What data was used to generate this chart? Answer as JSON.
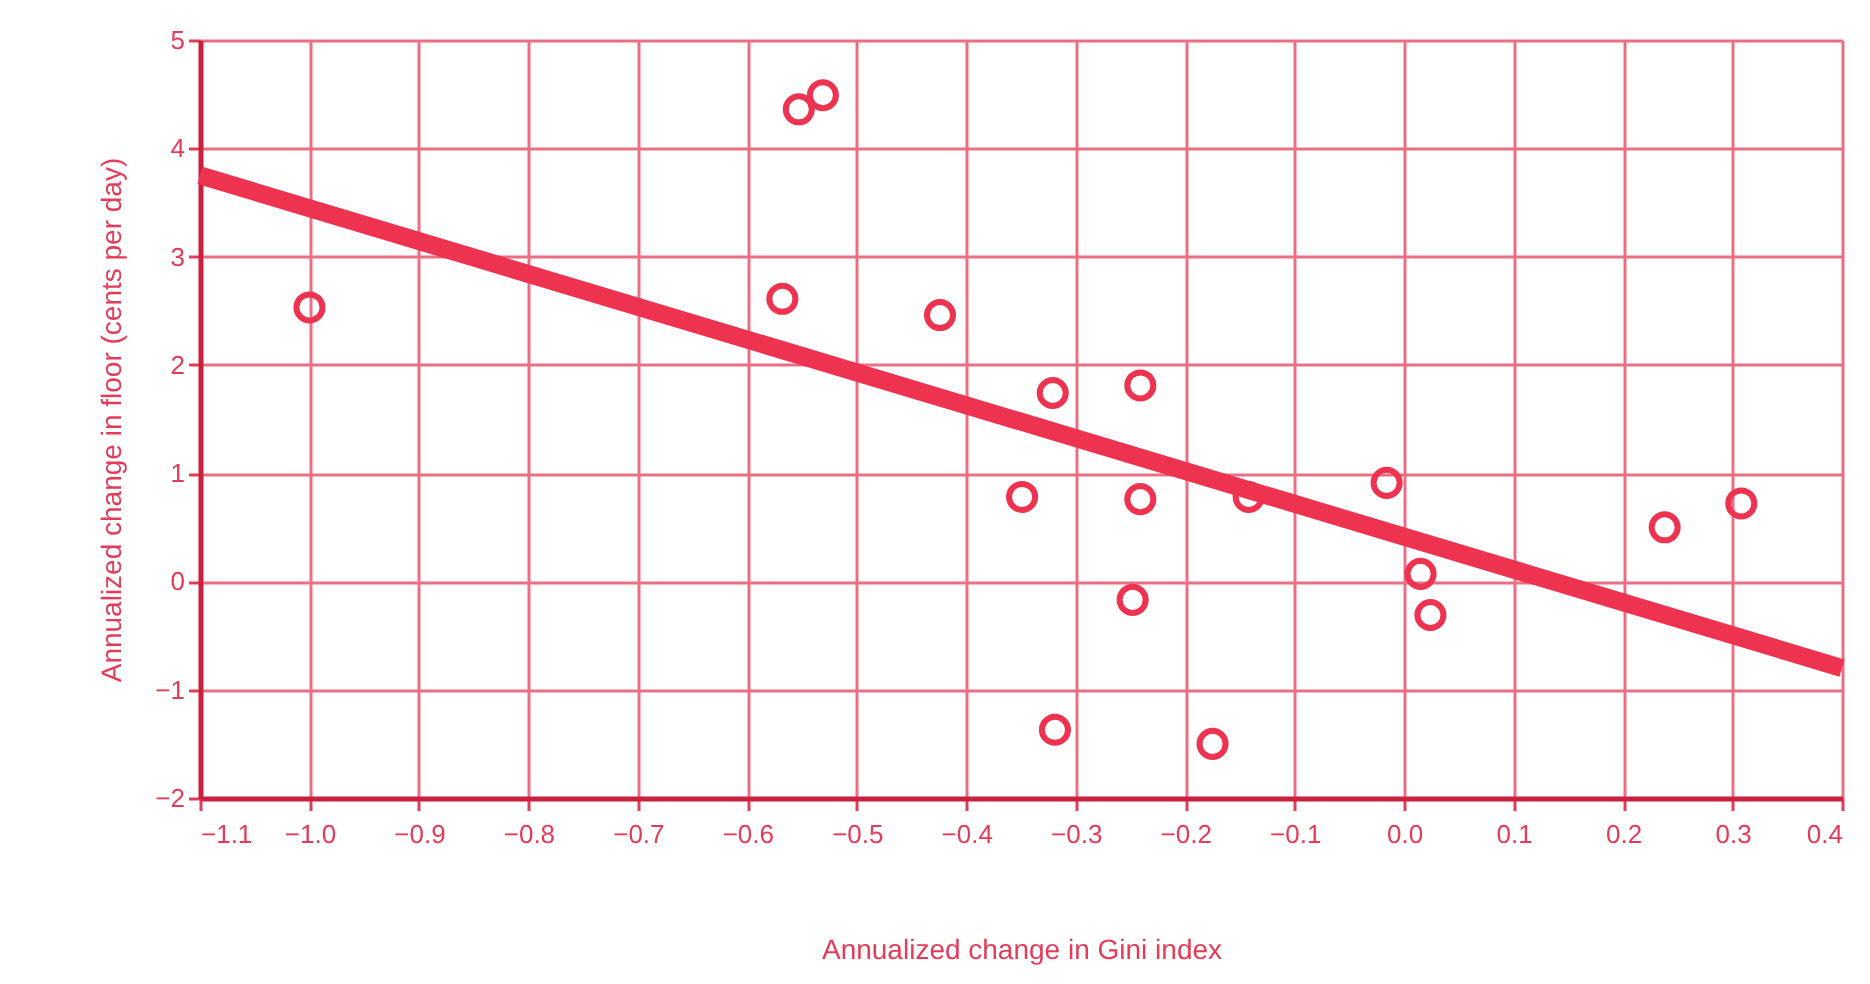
{
  "chart_data": {
    "type": "scatter",
    "xlabel": "Annualized change in Gini index",
    "ylabel": "Annualized change in floor (cents per day)",
    "xlim": [
      -1.1,
      0.4
    ],
    "xticks": [
      {
        "value": -1.1,
        "label": "−1.1"
      },
      {
        "value": -1.0,
        "label": "−1.0"
      },
      {
        "value": -0.9,
        "label": "−0.9"
      },
      {
        "value": -0.8,
        "label": "−0.8"
      },
      {
        "value": -0.7,
        "label": "−0.7"
      },
      {
        "value": -0.6,
        "label": "−0.6"
      },
      {
        "value": -0.5,
        "label": "−0.5"
      },
      {
        "value": -0.4,
        "label": "−0.4"
      },
      {
        "value": -0.3,
        "label": "−0.3"
      },
      {
        "value": -0.2,
        "label": "−0.2"
      },
      {
        "value": -0.1,
        "label": "−0.1"
      },
      {
        "value": 0,
        "label": "0.0"
      },
      {
        "value": 0.1,
        "label": "0.1"
      },
      {
        "value": 0.2,
        "label": "0.2"
      },
      {
        "value": 0.3,
        "label": "0.3"
      },
      {
        "value": 0.4,
        "label": "0.4"
      }
    ],
    "ylim": [
      -2,
      5
    ],
    "yticks": [
      {
        "value": -2,
        "label": "−2"
      },
      {
        "value": -1,
        "label": "−1"
      },
      0,
      1,
      2,
      3,
      4,
      5
    ],
    "grid": true,
    "series": [
      {
        "type": "line",
        "color": "#ee3350",
        "x": [
          -1.1,
          0.4
        ],
        "values": [
          3.75,
          -0.8
        ]
      },
      {
        "type": "scatter",
        "marker": "circle",
        "color": "#ee3350",
        "x": [
          -1.0,
          -0.553,
          -0.531,
          -0.568,
          -0.424,
          -0.321,
          -0.241,
          -0.349,
          -0.241,
          -0.142,
          -0.248,
          -0.319,
          -0.175,
          -0.016,
          0.015,
          0.024,
          0.238,
          0.308
        ],
        "values": [
          2.53,
          4.36,
          4.49,
          2.61,
          2.46,
          1.74,
          1.81,
          0.78,
          0.76,
          0.78,
          -0.17,
          -1.37,
          -1.5,
          0.91,
          0.07,
          -0.31,
          0.5,
          0.72
        ]
      }
    ]
  }
}
